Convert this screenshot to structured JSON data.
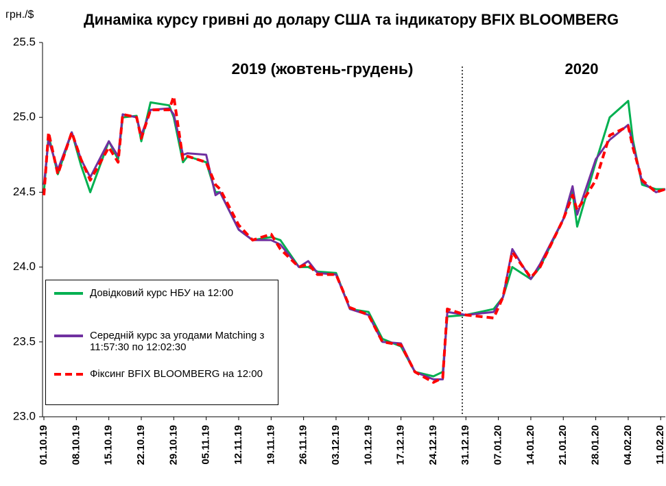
{
  "chart_data": {
    "type": "line",
    "title": "Динаміка курсу гривні до долару США та індикатору BFIX BLOOMBERG",
    "y_label": "грн./$",
    "annotations": [
      "2019 (жовтень-грудень)",
      "2020"
    ],
    "x": [
      "01.10.19",
      "02.10.19",
      "04.10.19",
      "07.10.19",
      "09.10.19",
      "11.10.19",
      "15.10.19",
      "17.10.19",
      "18.10.19",
      "21.10.19",
      "22.10.19",
      "24.10.19",
      "28.10.19",
      "29.10.19",
      "31.10.19",
      "01.11.19",
      "05.11.19",
      "07.11.19",
      "08.11.19",
      "12.11.19",
      "15.11.19",
      "19.11.19",
      "21.11.19",
      "25.11.19",
      "27.11.19",
      "29.11.19",
      "03.12.19",
      "06.12.19",
      "10.12.19",
      "13.12.19",
      "17.12.19",
      "20.12.19",
      "24.12.19",
      "26.12.19",
      "27.12.19",
      "31.12.19",
      "06.01.20",
      "08.01.20",
      "10.01.20",
      "14.01.20",
      "16.01.20",
      "21.01.20",
      "23.01.20",
      "24.01.20",
      "28.01.20",
      "31.01.20",
      "04.02.20",
      "05.02.20",
      "07.02.20",
      "10.02.20",
      "12.02.20"
    ],
    "xlim": [
      "01.10.19",
      "12.02.20"
    ],
    "xticks": [
      "01.10.19",
      "08.10.19",
      "15.10.19",
      "22.10.19",
      "29.10.19",
      "05.11.19",
      "12.11.19",
      "19.11.19",
      "26.11.19",
      "03.12.19",
      "10.12.19",
      "17.12.19",
      "24.12.19",
      "31.12.19",
      "07.01.20",
      "14.01.20",
      "21.01.20",
      "28.01.20",
      "04.02.20",
      "11.02.20"
    ],
    "ylim": [
      23,
      25.5
    ],
    "yticks": [
      {
        "value": 23,
        "label": "23.0"
      },
      23.5,
      {
        "value": 24,
        "label": "24.0"
      },
      24.5,
      {
        "value": 25,
        "label": "25.0"
      },
      25.5
    ],
    "grid": false,
    "series": [
      {
        "name": "Довідковий курс НБУ на 12:00",
        "color": "#00b050",
        "dashed": false,
        "values": [
          24.5,
          24.88,
          24.62,
          24.9,
          24.68,
          24.5,
          24.84,
          24.72,
          25,
          25.01,
          24.84,
          25.1,
          25.08,
          25,
          24.7,
          24.74,
          24.7,
          24.5,
          24.5,
          24.25,
          24.18,
          24.2,
          24.18,
          24,
          24,
          23.97,
          23.96,
          23.72,
          23.7,
          23.52,
          23.47,
          23.3,
          23.27,
          23.3,
          23.67,
          23.68,
          23.72,
          23.8,
          24,
          23.92,
          24,
          24.32,
          24.5,
          24.27,
          24.7,
          25,
          25.11,
          24.85,
          24.55,
          24.52,
          24.52
        ]
      },
      {
        "name": "Середній курс за угодами Matching з 11:57:30 по 12:02:30",
        "color": "#7030a0",
        "dashed": false,
        "values": [
          24.55,
          24.85,
          24.65,
          24.9,
          24.72,
          24.6,
          24.84,
          24.74,
          25.02,
          25,
          24.88,
          25.05,
          25.06,
          25.02,
          24.75,
          24.76,
          24.75,
          24.48,
          24.5,
          24.25,
          24.18,
          24.18,
          24.15,
          24,
          24.04,
          23.96,
          23.95,
          23.72,
          23.68,
          23.5,
          23.49,
          23.3,
          23.25,
          23.25,
          23.7,
          23.68,
          23.7,
          23.8,
          24.12,
          23.92,
          24.02,
          24.32,
          24.54,
          24.35,
          24.72,
          24.85,
          24.95,
          24.82,
          24.57,
          24.5,
          24.52
        ]
      },
      {
        "name": "Фіксинг BFIX BLOOMBERG на 12:00",
        "color": "#ff0000",
        "dashed": true,
        "values": [
          24.48,
          24.9,
          24.62,
          24.9,
          24.72,
          24.58,
          24.8,
          24.7,
          25.02,
          25,
          24.86,
          25.05,
          25.05,
          25.14,
          24.72,
          24.74,
          24.7,
          24.55,
          24.52,
          24.28,
          24.18,
          24.22,
          24.12,
          24,
          24.02,
          23.95,
          23.95,
          23.73,
          23.68,
          23.5,
          23.48,
          23.3,
          23.23,
          23.26,
          23.72,
          23.68,
          23.66,
          23.8,
          24.1,
          23.93,
          24,
          24.32,
          24.48,
          24.38,
          24.58,
          24.88,
          24.94,
          24.8,
          24.58,
          24.5,
          24.52
        ]
      }
    ]
  }
}
